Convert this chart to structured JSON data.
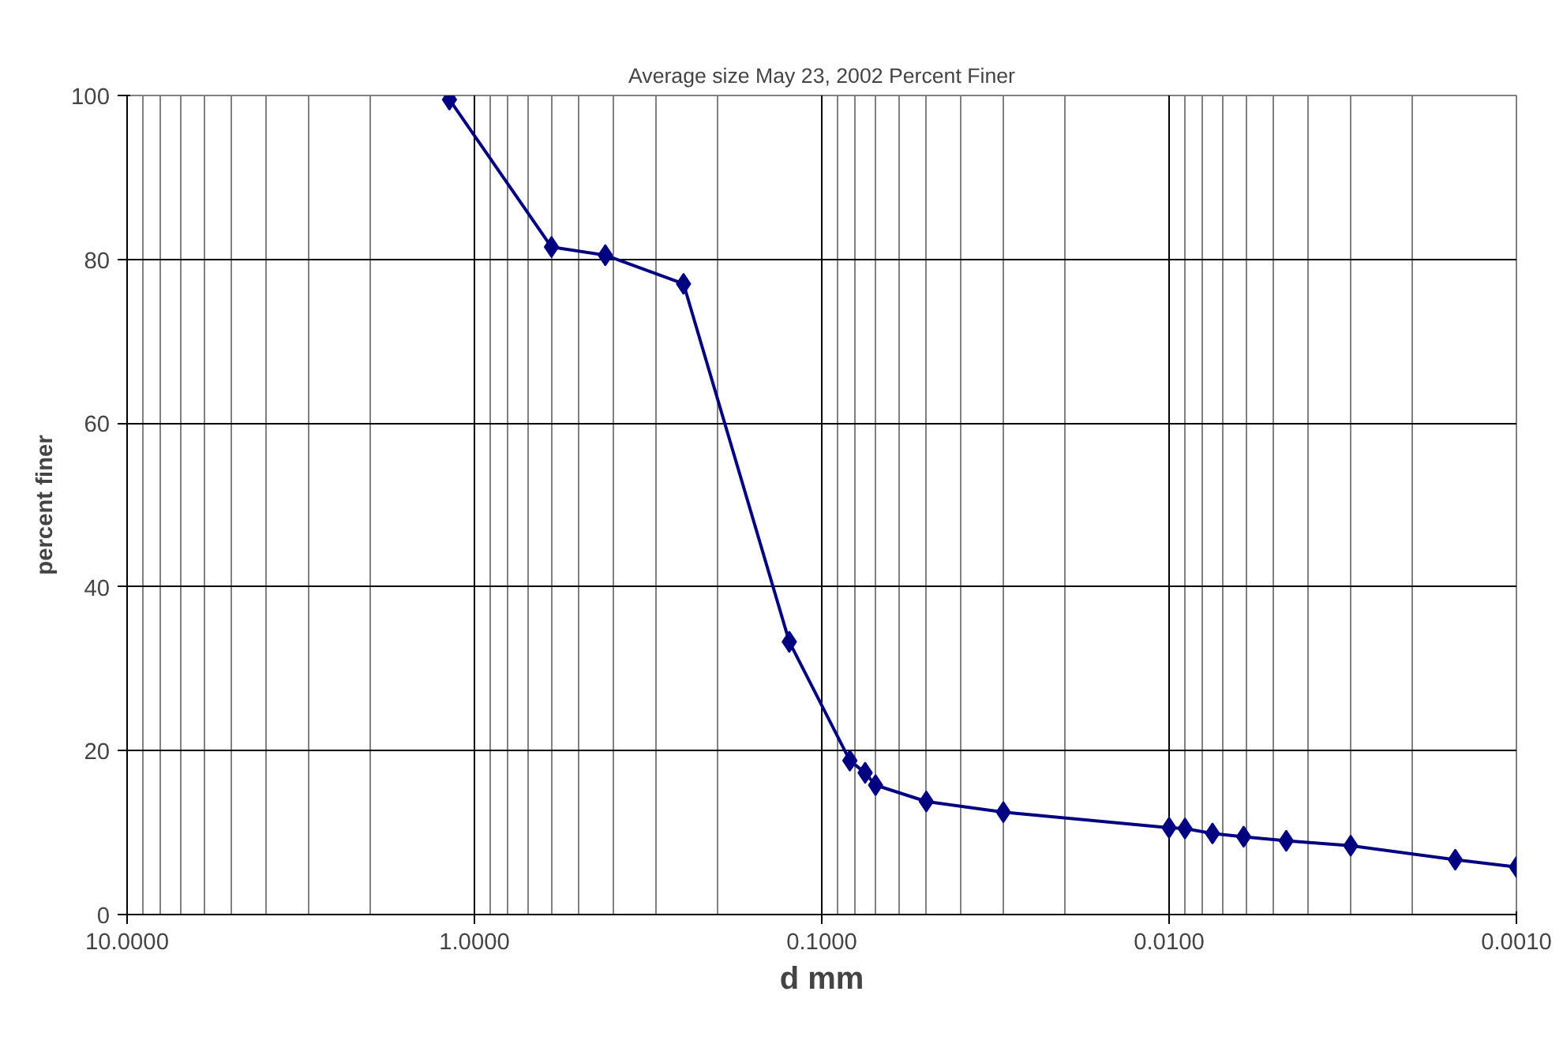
{
  "chart_data": {
    "type": "line",
    "title": "Average size May 23, 2002 Percent Finer",
    "xlabel": "d mm",
    "ylabel": "percent finer",
    "x": [
      1.18,
      0.6,
      0.42,
      0.25,
      0.124,
      0.083,
      0.075,
      0.07,
      0.05,
      0.03,
      0.01,
      0.009,
      0.0075,
      0.0061,
      0.0046,
      0.003,
      0.0015,
      0.001
    ],
    "series": [
      {
        "color": "#000080",
        "values": [
          99.5,
          81.5,
          80.5,
          77,
          33.3,
          18.8,
          17.3,
          15.8,
          13.8,
          12.5,
          10.6,
          10.5,
          9.9,
          9.5,
          9.0,
          8.4,
          6.7,
          5.8
        ]
      }
    ],
    "log": "x",
    "xlim": [
      10,
      0.001
    ],
    "xticks": [
      {
        "value": 10,
        "label": "10.0000"
      },
      {
        "value": 1,
        "label": "1.0000"
      },
      {
        "value": 0.1,
        "label": "0.1000"
      },
      {
        "value": 0.01,
        "label": "0.0100"
      },
      {
        "value": 0.001,
        "label": "0.0010"
      }
    ],
    "ylim": [
      0,
      100
    ],
    "yticks": [
      0,
      20,
      40,
      60,
      80,
      100
    ],
    "grid": true,
    "marker": "diamond",
    "line_style": "solid"
  }
}
